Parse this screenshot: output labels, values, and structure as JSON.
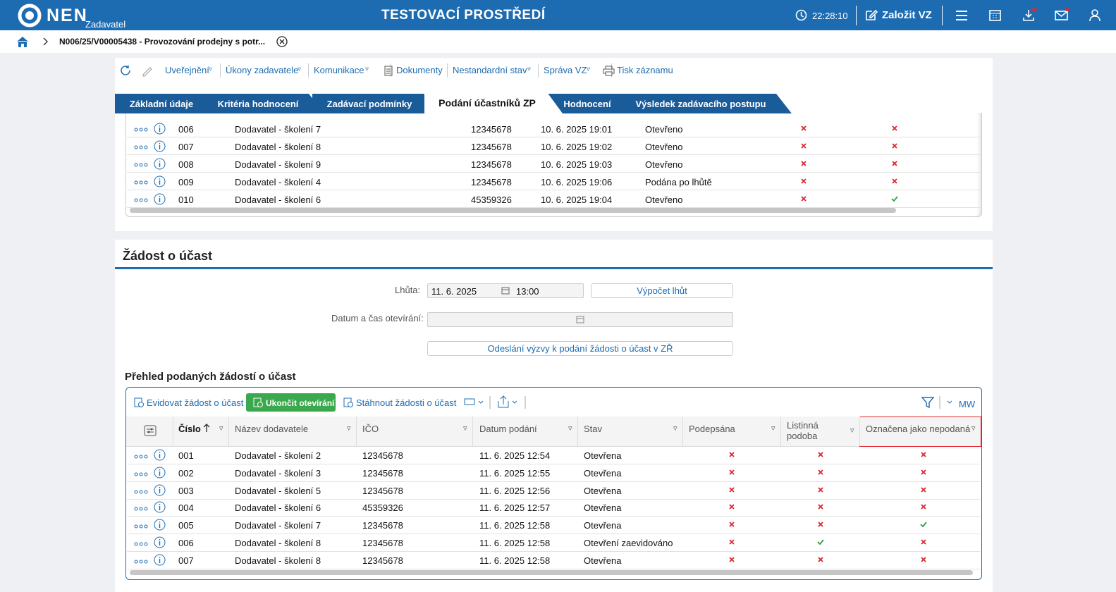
{
  "header": {
    "logo": "NEN",
    "role": "Zadavatel",
    "title": "TESTOVACÍ PROSTŘEDÍ",
    "time": "22:28:10",
    "create": "Založit VZ"
  },
  "breadcrumb": "N006/25/V00005438 - Provozování prodejny s potr...",
  "toolbar": [
    "Uveřejnění",
    "Úkony zadavatele",
    "Komunikace",
    "Dokumenty",
    "Nestandardní stav",
    "Správa VZ",
    "Tisk záznamu"
  ],
  "tabs": [
    "Základní údaje",
    "Kritéria hodnocení",
    "Zadávací podmínky",
    "Podání účastníků ZP",
    "Hodnocení",
    "Výsledek zadávacího postupu"
  ],
  "active_tab": 3,
  "offers_table": {
    "rows": [
      [
        "006",
        "Dodavatel - školení 7",
        "12345678",
        "10. 6. 2025 19:01",
        "Otevřeno",
        false,
        false
      ],
      [
        "007",
        "Dodavatel - školení 8",
        "12345678",
        "10. 6. 2025 19:02",
        "Otevřeno",
        false,
        false
      ],
      [
        "008",
        "Dodavatel - školení 9",
        "12345678",
        "10. 6. 2025 19:03",
        "Otevřeno",
        false,
        false
      ],
      [
        "009",
        "Dodavatel - školení 4",
        "12345678",
        "10. 6. 2025 19:06",
        "Podána po lhůtě",
        false,
        false
      ],
      [
        "010",
        "Dodavatel - školení 6",
        "45359326",
        "10. 6. 2025 19:04",
        "Otevřeno",
        false,
        true
      ]
    ]
  },
  "section": {
    "title": "Žádost o účast",
    "deadline_label": "Lhůta:",
    "deadline_date": "11. 6. 2025",
    "deadline_time": "13:00",
    "calc_button": "Výpočet lhůt",
    "opening_label": "Datum a čas otevírání:",
    "send_button": "Odeslání výzvy k podání žádosti o účast v ZŘ"
  },
  "requests": {
    "title": "Přehled podaných žádostí o účast",
    "actions": [
      "Evidovat žádost o účast",
      "Ukončit otevírání",
      "Stáhnout žádosti o účast"
    ],
    "view": "MW",
    "columns": [
      "Číslo",
      "Název dodavatele",
      "IČO",
      "Datum podání",
      "Stav",
      "Podepsána",
      "Listinná podoba",
      "Označena jako nepodaná"
    ],
    "rows": [
      [
        "001",
        "Dodavatel - školení 2",
        "12345678",
        "11. 6. 2025 12:54",
        "Otevřena",
        false,
        false,
        false
      ],
      [
        "002",
        "Dodavatel - školení 3",
        "12345678",
        "11. 6. 2025 12:55",
        "Otevřena",
        false,
        false,
        false
      ],
      [
        "003",
        "Dodavatel - školení 5",
        "12345678",
        "11. 6. 2025 12:56",
        "Otevřena",
        false,
        false,
        false
      ],
      [
        "004",
        "Dodavatel - školení 6",
        "45359326",
        "11. 6. 2025 12:57",
        "Otevřena",
        false,
        false,
        false
      ],
      [
        "005",
        "Dodavatel - školení 7",
        "12345678",
        "11. 6. 2025 12:58",
        "Otevřena",
        false,
        false,
        true
      ],
      [
        "006",
        "Dodavatel - školení 8",
        "12345678",
        "11. 6. 2025 12:58",
        "Otevření zaevidováno",
        false,
        true,
        false
      ],
      [
        "007",
        "Dodavatel - školení 8",
        "12345678",
        "11. 6. 2025 12:58",
        "Otevřena",
        false,
        false,
        false
      ]
    ]
  }
}
